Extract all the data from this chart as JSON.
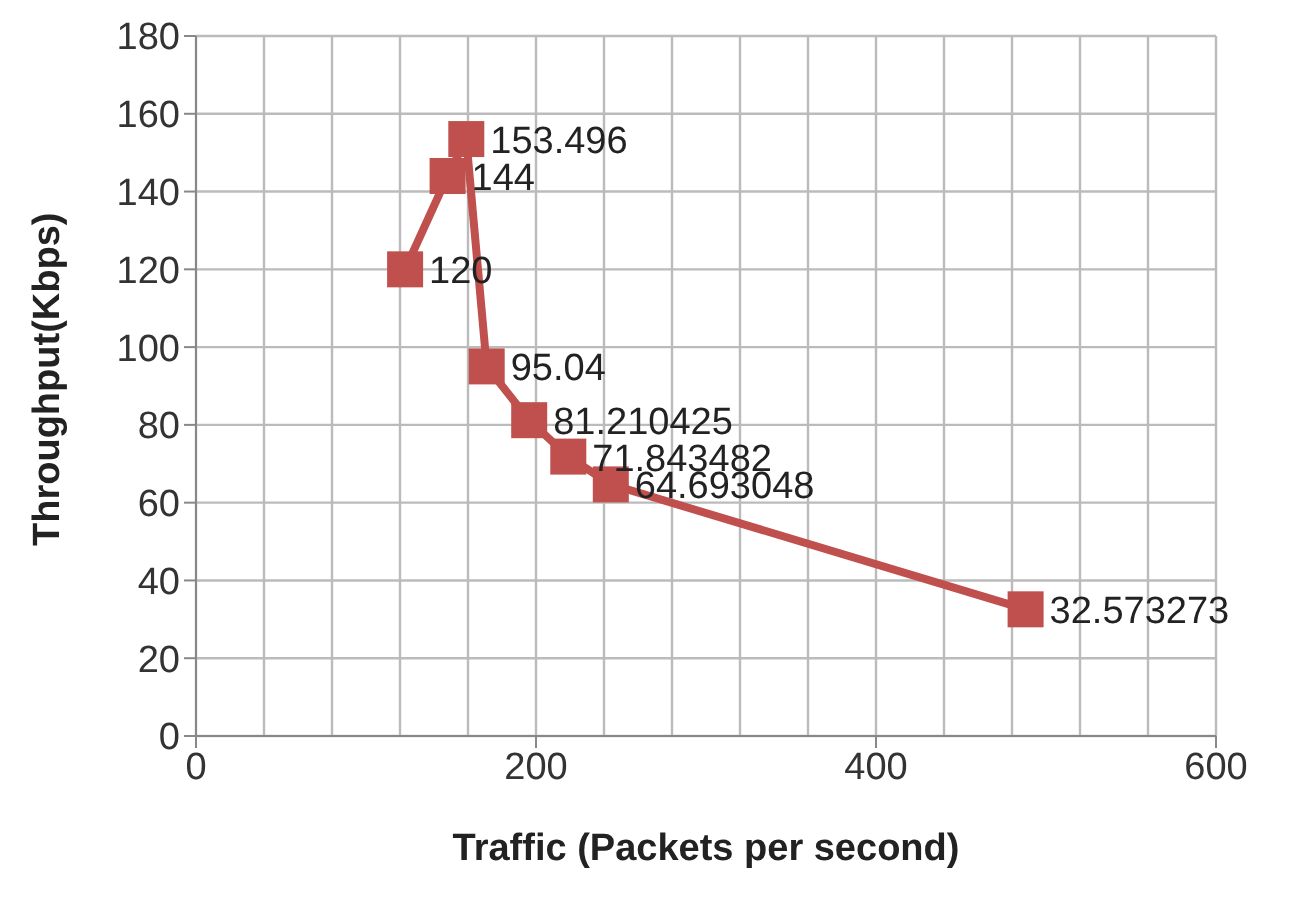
{
  "chart_data": {
    "type": "line",
    "xlabel": "Traffic (Packets per second)",
    "ylabel": "Throughput(Kbps)",
    "x": [
      123,
      148,
      159,
      171,
      196,
      219,
      244,
      488
    ],
    "series": [
      {
        "color": "#c0504d",
        "values": [
          120,
          144,
          153.496,
          95.04,
          81.210425,
          71.843482,
          64.693048,
          32.573273
        ]
      }
    ],
    "xlim": [
      0,
      600
    ],
    "xticks": [
      0,
      200,
      400,
      600
    ],
    "ylim": [
      0,
      180
    ],
    "yticks": [
      0,
      20,
      40,
      60,
      80,
      100,
      120,
      140,
      160,
      180
    ],
    "grid": true,
    "marker": "square",
    "data_labels": true,
    "line_style": "solid"
  }
}
